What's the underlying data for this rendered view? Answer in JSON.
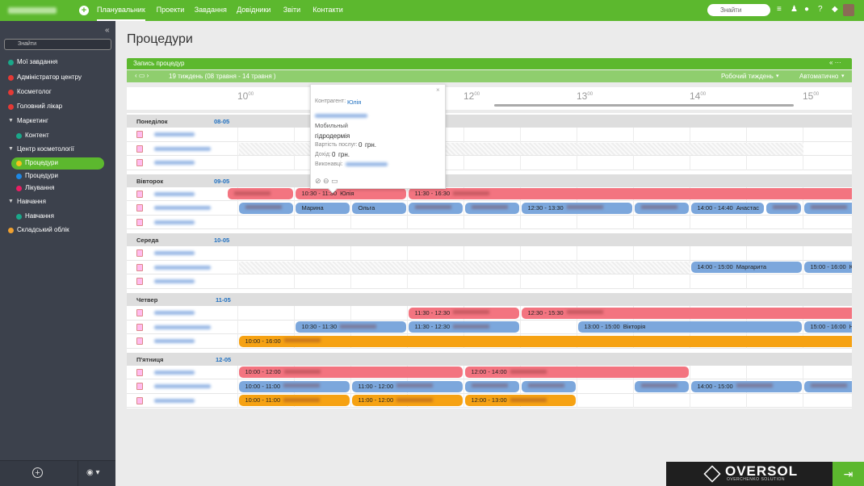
{
  "topbar": {
    "nav": [
      "Планувальник",
      "Проекти",
      "Завдання",
      "Довідники",
      "Звіти",
      "Контакти"
    ],
    "search": "Знайти"
  },
  "sidebar": {
    "search": "Знайти",
    "items": [
      "Мої завдання",
      "Адміністратор центру",
      "Косметолог",
      "Головний лікар",
      "Маркетинг",
      "Контент",
      "Центр косметології",
      "Процедури",
      "Процедури",
      "Лікування",
      "Навчання",
      "Навчання",
      "Складський облік"
    ]
  },
  "page": {
    "title": "Процедури",
    "panel_title": "Запись процедур",
    "week": "19 тиждень (08 травня - 14 травня )",
    "view": "Робочий тиждень",
    "mode": "Автоматично"
  },
  "schedule": {
    "hours": [
      {
        "hour": "10",
        "minutes": "00"
      },
      {
        "hour": "12",
        "minutes": "00"
      },
      {
        "hour": "13",
        "minutes": "00"
      },
      {
        "hour": "14",
        "minutes": "00"
      },
      {
        "hour": "15",
        "minutes": "00"
      }
    ],
    "days": [
      {
        "name": "Понеділок",
        "date": "08-05",
        "events": []
      },
      {
        "name": "Вівторок",
        "date": "09-05",
        "events": [
          {
            "time": "10:30 - 11:30",
            "name": "Юлія"
          },
          {
            "time": "11:30 - 16:30"
          },
          {
            "name": "Марина"
          },
          {
            "name": "Ольга"
          },
          {
            "time": "12:30 - 13:30"
          },
          {
            "time": "14:00 - 14:40",
            "name": "Анастас"
          }
        ]
      },
      {
        "name": "Середа",
        "date": "10-05",
        "events": [
          {
            "time": "14:00 - 15:00",
            "name": "Маргарита"
          },
          {
            "time": "15:00 - 16:00",
            "name": "Ку"
          }
        ]
      },
      {
        "name": "Четвер",
        "date": "11-05",
        "events": [
          {
            "time": "11:30 - 12:30"
          },
          {
            "time": "12:30 - 15:30"
          },
          {
            "time": "10:30 - 11:30"
          },
          {
            "time": "11:30 - 12:30"
          },
          {
            "time": "13:00 - 15:00",
            "name": "Вікторія"
          },
          {
            "time": "15:00 - 16:00",
            "name": "Н"
          },
          {
            "time": "10:00 - 16:00"
          }
        ]
      },
      {
        "name": "П'ятниця",
        "date": "12-05",
        "events": [
          {
            "time": "10:00 - 12:00"
          },
          {
            "time": "12:00 - 14:00"
          },
          {
            "time": "10:00 - 11:00"
          },
          {
            "time": "11:00 - 12:00"
          },
          {
            "time": "14:00 - 15:00"
          },
          {
            "time": "10:00 - 11:00"
          },
          {
            "time": "11:00 - 12:00"
          },
          {
            "time": "12:00 - 13:00"
          }
        ]
      }
    ]
  },
  "popup": {
    "client_label": "Контрагент:",
    "client": "Юлія",
    "phone_type": "Мобильный",
    "service": "гідродермія",
    "cost_label": "Вартість послуг:",
    "cost": 0,
    "cost_unit": "грн.",
    "income_label": "Дохід:",
    "income": 0,
    "income_unit": "грн.",
    "staff_label": "Виконавці:"
  },
  "footer": {
    "brand": "OVERSOL",
    "tagline": "OVERCHENKO SOLUTION"
  }
}
